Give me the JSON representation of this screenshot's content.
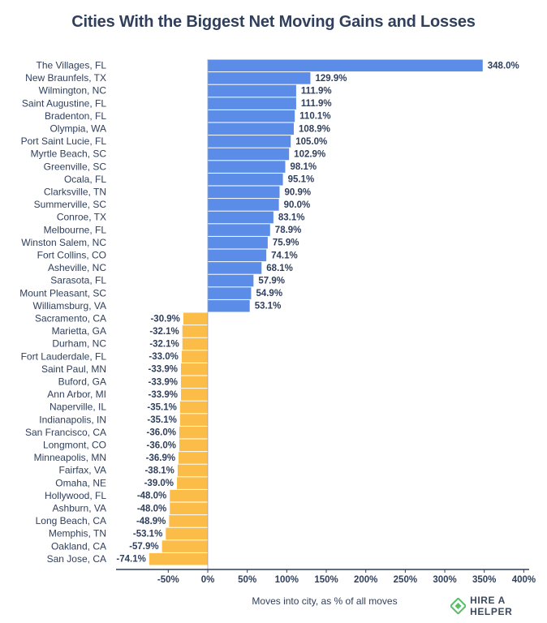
{
  "title": "Cities With the Biggest Net Moving Gains and Losses",
  "brand": "HIRE A HELPER",
  "colors": {
    "positive": "#5b8de8",
    "negative": "#fbbd47",
    "text": "#2f3f5c",
    "logo_green": "#5bbf6a"
  },
  "chart_data": {
    "type": "bar",
    "orientation": "horizontal",
    "title": "Cities With the Biggest Net Moving Gains and Losses",
    "xlabel": "Moves into city, as % of all moves",
    "ylabel": "",
    "xlim": [
      -100,
      400
    ],
    "xticks": [
      -50,
      0,
      50,
      100,
      150,
      200,
      250,
      300,
      350,
      400
    ],
    "xtick_labels": [
      "-50%",
      "0%",
      "50%",
      "100%",
      "150%",
      "200%",
      "250%",
      "300%",
      "350%",
      "400%"
    ],
    "grid": false,
    "categories": [
      "The Villages, FL",
      "New Braunfels, TX",
      "Wilmington, NC",
      "Saint Augustine, FL",
      "Bradenton, FL",
      "Olympia, WA",
      "Port Saint Lucie, FL",
      "Myrtle Beach, SC",
      "Greenville, SC",
      "Ocala, FL",
      "Clarksville, TN",
      "Summerville, SC",
      "Conroe, TX",
      "Melbourne, FL",
      "Winston Salem, NC",
      "Fort Collins, CO",
      "Asheville, NC",
      "Sarasota, FL",
      "Mount Pleasant, SC",
      "Williamsburg, VA",
      "Sacramento, CA",
      "Marietta, GA",
      "Durham, NC",
      "Fort Lauderdale, FL",
      "Saint Paul, MN",
      "Buford, GA",
      "Ann Arbor, MI",
      "Naperville, IL",
      "Indianapolis, IN",
      "San Francisco, CA",
      "Longmont, CO",
      "Minneapolis, MN",
      "Fairfax, VA",
      "Omaha, NE",
      "Hollywood, FL",
      "Ashburn, VA",
      "Long Beach, CA",
      "Memphis, TN",
      "Oakland, CA",
      "San Jose, CA"
    ],
    "values": [
      348.0,
      129.9,
      111.9,
      111.9,
      110.1,
      108.9,
      105.0,
      102.9,
      98.1,
      95.1,
      90.9,
      90.0,
      83.1,
      78.9,
      75.9,
      74.1,
      68.1,
      57.9,
      54.9,
      53.1,
      -30.9,
      -32.1,
      -32.1,
      -33.0,
      -33.9,
      -33.9,
      -33.9,
      -35.1,
      -35.1,
      -36.0,
      -36.0,
      -36.9,
      -38.1,
      -39.0,
      -48.0,
      -48.0,
      -48.9,
      -53.1,
      -57.9,
      -74.1
    ],
    "value_labels": [
      "348.0%",
      "129.9%",
      "111.9%",
      "111.9%",
      "110.1%",
      "108.9%",
      "105.0%",
      "102.9%",
      "98.1%",
      "95.1%",
      "90.9%",
      "90.0%",
      "83.1%",
      "78.9%",
      "75.9%",
      "74.1%",
      "68.1%",
      "57.9%",
      "54.9%",
      "53.1%",
      "-30.9%",
      "-32.1%",
      "-32.1%",
      "-33.0%",
      "-33.9%",
      "-33.9%",
      "-33.9%",
      "-35.1%",
      "-35.1%",
      "-36.0%",
      "-36.0%",
      "-36.9%",
      "-38.1%",
      "-39.0%",
      "-48.0%",
      "-48.0%",
      "-48.9%",
      "-53.1%",
      "-57.9%",
      "-74.1%"
    ]
  }
}
